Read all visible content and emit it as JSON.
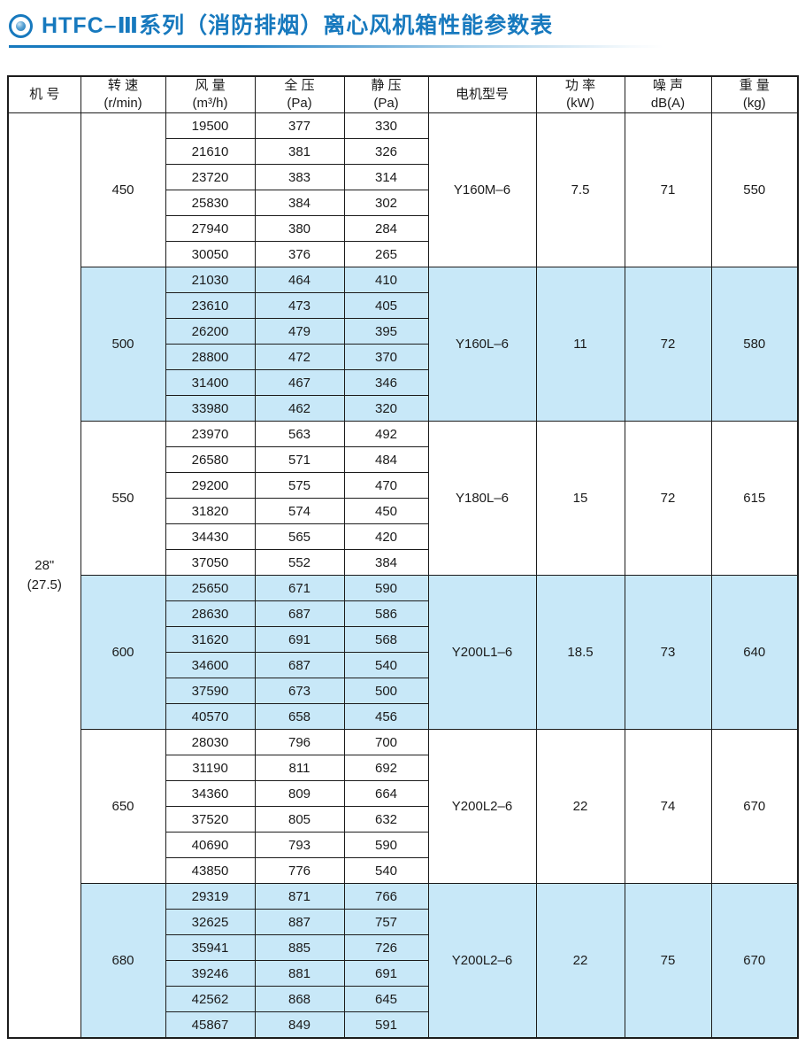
{
  "title": {
    "icon": "concentric-circle-bullet-icon",
    "text": "HTFC–Ⅲ系列（消防排烟）离心风机箱性能参数表",
    "accent_color": "#1779be"
  },
  "table": {
    "band_color": "#c8e8f8",
    "border_color": "#1c1c1c",
    "header": [
      {
        "label": "机 号",
        "sub": ""
      },
      {
        "label": "转 速",
        "sub": "(r/min)"
      },
      {
        "label": "风 量",
        "sub": "(m³/h)"
      },
      {
        "label": "全 压",
        "sub": "(Pa)"
      },
      {
        "label": "静 压",
        "sub": "(Pa)"
      },
      {
        "label": "电机型号",
        "sub": ""
      },
      {
        "label": "功 率",
        "sub": "(kW)"
      },
      {
        "label": "噪 声",
        "sub": "dB(A)"
      },
      {
        "label": "重 量",
        "sub": "(kg)"
      }
    ],
    "machine_no": {
      "line1": "28\"",
      "line2": "(27.5)"
    },
    "groups": [
      {
        "speed": "450",
        "motor": "Y160M–6",
        "power": "7.5",
        "noise": "71",
        "weight": "550",
        "shaded": false,
        "rows": [
          [
            19500,
            377,
            330
          ],
          [
            21610,
            381,
            326
          ],
          [
            23720,
            383,
            314
          ],
          [
            25830,
            384,
            302
          ],
          [
            27940,
            380,
            284
          ],
          [
            30050,
            376,
            265
          ]
        ]
      },
      {
        "speed": "500",
        "motor": "Y160L–6",
        "power": "11",
        "noise": "72",
        "weight": "580",
        "shaded": true,
        "rows": [
          [
            21030,
            464,
            410
          ],
          [
            23610,
            473,
            405
          ],
          [
            26200,
            479,
            395
          ],
          [
            28800,
            472,
            370
          ],
          [
            31400,
            467,
            346
          ],
          [
            33980,
            462,
            320
          ]
        ]
      },
      {
        "speed": "550",
        "motor": "Y180L–6",
        "power": "15",
        "noise": "72",
        "weight": "615",
        "shaded": false,
        "rows": [
          [
            23970,
            563,
            492
          ],
          [
            26580,
            571,
            484
          ],
          [
            29200,
            575,
            470
          ],
          [
            31820,
            574,
            450
          ],
          [
            34430,
            565,
            420
          ],
          [
            37050,
            552,
            384
          ]
        ]
      },
      {
        "speed": "600",
        "motor": "Y200L1–6",
        "power": "18.5",
        "noise": "73",
        "weight": "640",
        "shaded": true,
        "rows": [
          [
            25650,
            671,
            590
          ],
          [
            28630,
            687,
            586
          ],
          [
            31620,
            691,
            568
          ],
          [
            34600,
            687,
            540
          ],
          [
            37590,
            673,
            500
          ],
          [
            40570,
            658,
            456
          ]
        ]
      },
      {
        "speed": "650",
        "motor": "Y200L2–6",
        "power": "22",
        "noise": "74",
        "weight": "670",
        "shaded": false,
        "rows": [
          [
            28030,
            796,
            700
          ],
          [
            31190,
            811,
            692
          ],
          [
            34360,
            809,
            664
          ],
          [
            37520,
            805,
            632
          ],
          [
            40690,
            793,
            590
          ],
          [
            43850,
            776,
            540
          ]
        ]
      },
      {
        "speed": "680",
        "motor": "Y200L2–6",
        "power": "22",
        "noise": "75",
        "weight": "670",
        "shaded": true,
        "rows": [
          [
            29319,
            871,
            766
          ],
          [
            32625,
            887,
            757
          ],
          [
            35941,
            885,
            726
          ],
          [
            39246,
            881,
            691
          ],
          [
            42562,
            868,
            645
          ],
          [
            45867,
            849,
            591
          ]
        ]
      }
    ]
  }
}
